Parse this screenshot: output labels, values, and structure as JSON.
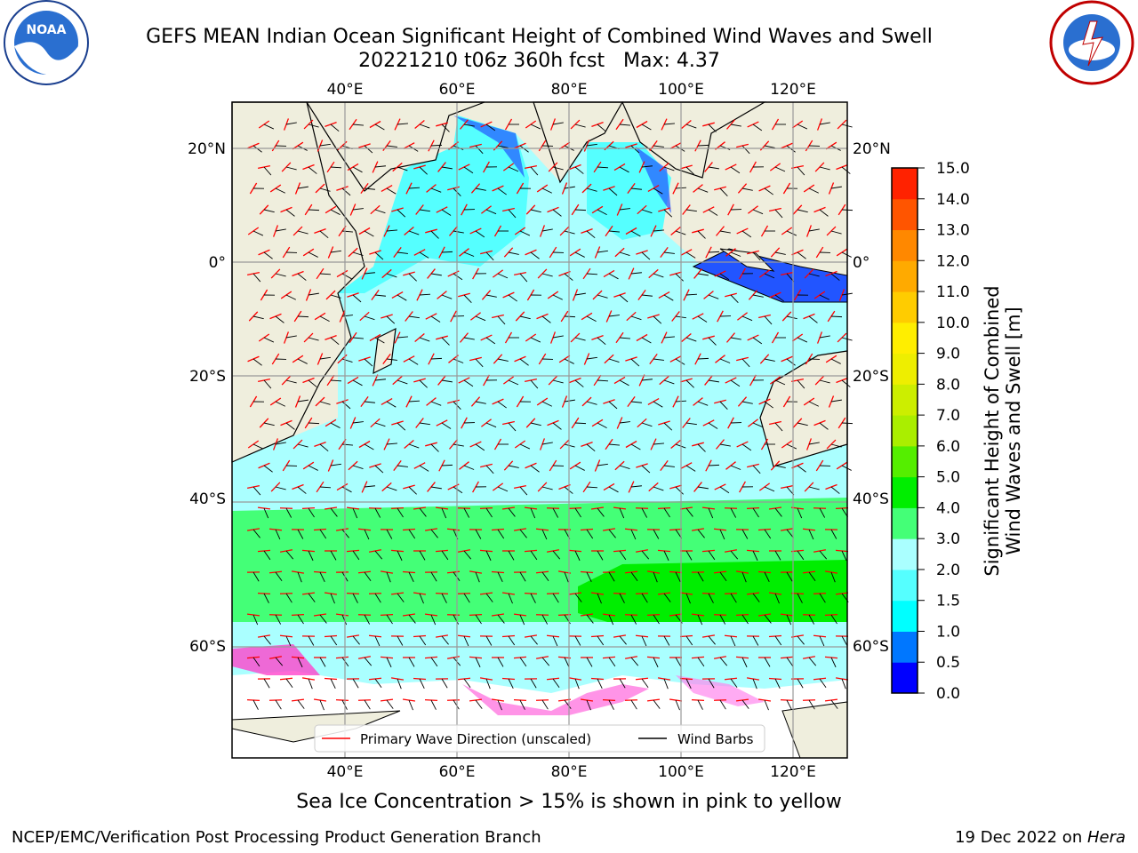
{
  "title": "GEFS MEAN Indian Ocean Significant Height of Combined Wind Waves and Swell",
  "subtitle": "20221210 t06z 360h fcst   Max: 4.37",
  "logos": {
    "left": "NOAA",
    "right": "NATIONAL WEATHER SERVICE"
  },
  "map": {
    "lon_ticks_top": [
      "40°E",
      "60°E",
      "80°E",
      "100°E",
      "120°E"
    ],
    "lon_ticks_bottom": [
      "40°E",
      "60°E",
      "80°E",
      "100°E",
      "120°E"
    ],
    "lat_ticks_left": [
      "20°N",
      "0°",
      "20°S",
      "40°S",
      "60°S"
    ],
    "lat_ticks_right": [
      "20°N",
      "0°",
      "20°S",
      "40°S",
      "60°S"
    ],
    "legend": {
      "wave": "Primary Wave Direction (unscaled)",
      "wind": "Wind Barbs"
    },
    "colors": {
      "land": "#efeedd",
      "ocean_low": "#aaffff",
      "ocean_mid": "#55ffff",
      "ocean_high": "#44ff77",
      "wave_arrow": "#ff0000",
      "barb": "#000000"
    }
  },
  "colorbar": {
    "label": "Significant Height of Combined Wind Waves and Swell [m]",
    "levels": [
      "0.0",
      "0.5",
      "1.0",
      "1.5",
      "2.0",
      "3.0",
      "4.0",
      "5.0",
      "6.0",
      "7.0",
      "8.0",
      "9.0",
      "10.0",
      "11.0",
      "12.0",
      "13.0",
      "14.0",
      "15.0"
    ],
    "colors": [
      "#0000ff",
      "#0077ff",
      "#00ffff",
      "#55ffff",
      "#aaffff",
      "#44ff77",
      "#00ee00",
      "#55ee00",
      "#aaee00",
      "#ccee00",
      "#eeee00",
      "#ffee00",
      "#ffcc00",
      "#ffaa00",
      "#ff8800",
      "#ff5500",
      "#ff2200"
    ]
  },
  "caption": "Sea Ice Concentration > 15% is shown in pink to yellow",
  "footer": {
    "left": "NCEP/EMC/Verification Post Processing Product Generation Branch",
    "right_date": "19 Dec 2022 on ",
    "right_host": "Hera"
  }
}
